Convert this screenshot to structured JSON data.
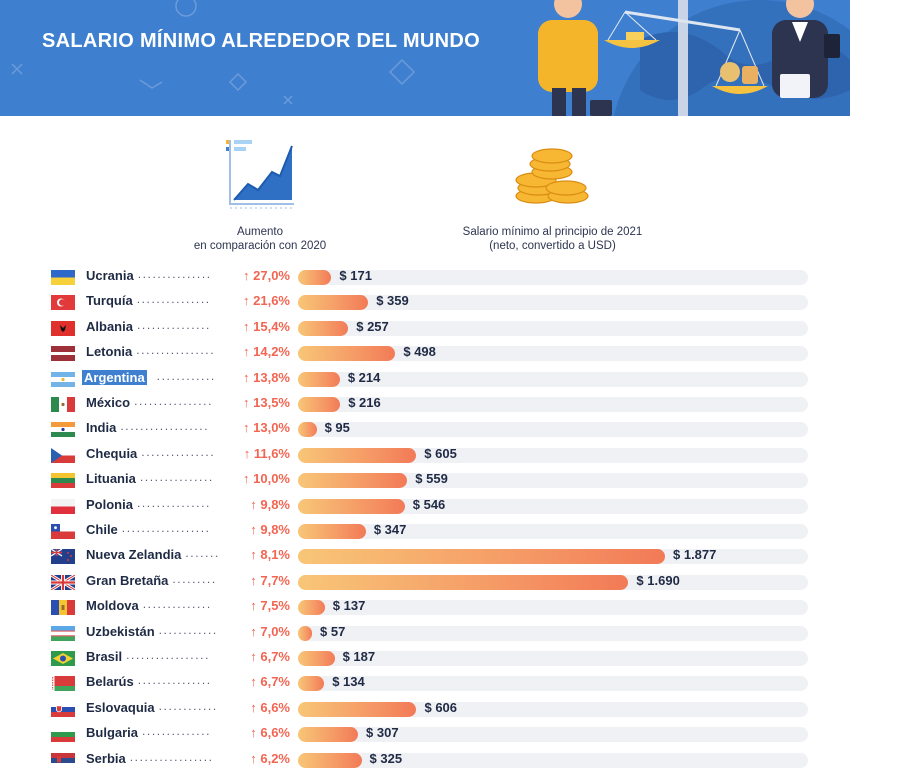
{
  "header": {
    "title": "SALARIO MÍNIMO ALREDEDOR DEL MUNDO"
  },
  "columns": {
    "increase_label_line1": "Aumento",
    "increase_label_line2": "en comparación con 2020",
    "salary_label_line1": "Salario mínimo al principio de 2021",
    "salary_label_line2": "(neto, convertido a USD)"
  },
  "colors": {
    "banner": "#3e7fcf",
    "increase_text": "#f26552",
    "bar_start": "#f8c677",
    "bar_end": "#f27a57",
    "track": "#f0f1f4"
  },
  "chart_data": {
    "type": "bar",
    "title": "SALARIO MÍNIMO ALREDEDOR DEL MUNDO",
    "xlabel": "Salario mínimo al principio de 2021 (neto, convertido a USD)",
    "ylabel": "",
    "xlim": [
      0,
      2000
    ],
    "highlighted": "Argentina",
    "categories": [
      "Ucrania",
      "Turquía",
      "Albania",
      "Letonia",
      "Argentina",
      "México",
      "India",
      "Chequia",
      "Lituania",
      "Polonia",
      "Chile",
      "Nueva Zelandia",
      "Gran Bretaña",
      "Moldova",
      "Uzbekistán",
      "Brasil",
      "Belarús",
      "Eslovaquia",
      "Bulgaria",
      "Serbia"
    ],
    "values": [
      171,
      359,
      257,
      498,
      214,
      216,
      95,
      605,
      559,
      546,
      347,
      1877,
      1690,
      137,
      57,
      187,
      134,
      606,
      307,
      325
    ],
    "value_labels": [
      "$ 171",
      "$ 359",
      "$ 257",
      "$ 498",
      "$ 214",
      "$ 216",
      "$ 95",
      "$ 605",
      "$ 559",
      "$ 546",
      "$ 347",
      "$ 1.877",
      "$ 1.690",
      "$ 137",
      "$ 57",
      "$ 187",
      "$ 134",
      "$ 606",
      "$ 307",
      "$ 325"
    ],
    "increase_labels": [
      "↑ 27,0%",
      "↑ 21,6%",
      "↑ 15,4%",
      "↑ 14,2%",
      "↑ 13,8%",
      "↑ 13,5%",
      "↑ 13,0%",
      "↑ 11,6%",
      "↑ 10,0%",
      "↑ 9,8%",
      "↑ 9,8%",
      "↑ 8,1%",
      "↑ 7,7%",
      "↑ 7,5%",
      "↑ 7,0%",
      "↑ 6,7%",
      "↑ 6,7%",
      "↑ 6,6%",
      "↑ 6,6%",
      "↑ 6,2%"
    ],
    "increase_values": [
      27.0,
      21.6,
      15.4,
      14.2,
      13.8,
      13.5,
      13.0,
      11.6,
      10.0,
      9.8,
      9.8,
      8.1,
      7.7,
      7.5,
      7.0,
      6.7,
      6.7,
      6.6,
      6.6,
      6.2
    ],
    "flags": [
      "ua-flag-icon",
      "tr-flag-icon",
      "al-flag-icon",
      "lv-flag-icon",
      "ar-flag-icon",
      "mx-flag-icon",
      "in-flag-icon",
      "cz-flag-icon",
      "lt-flag-icon",
      "pl-flag-icon",
      "cl-flag-icon",
      "nz-flag-icon",
      "gb-flag-icon",
      "md-flag-icon",
      "uz-flag-icon",
      "br-flag-icon",
      "by-flag-icon",
      "sk-flag-icon",
      "bg-flag-icon",
      "rs-flag-icon"
    ]
  }
}
